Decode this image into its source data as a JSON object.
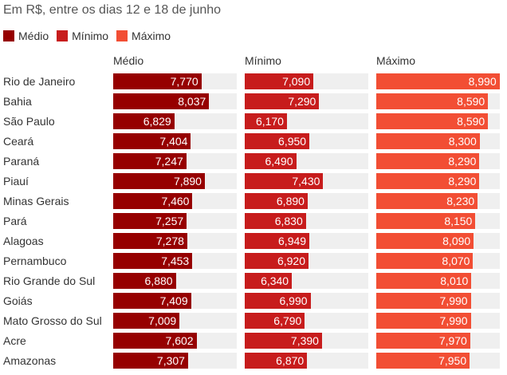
{
  "subtitle": "Em R$, entre os dias 12 e 18 de junho",
  "legend": [
    {
      "label": "Médio",
      "color": "#960000"
    },
    {
      "label": "Mínimo",
      "color": "#c71c1c"
    },
    {
      "label": "Máximo",
      "color": "#f24e34"
    }
  ],
  "chart_data": {
    "type": "bar",
    "orientation": "horizontal",
    "title": "",
    "subtitle": "Em R$, entre os dias 12 e 18 de junho",
    "categories": [
      "Rio de Janeiro",
      "Bahia",
      "São Paulo",
      "Ceará",
      "Paraná",
      "Piauí",
      "Minas Gerais",
      "Pará",
      "Alagoas",
      "Pernambuco",
      "Rio Grande do Sul",
      "Goiás",
      "Mato Grosso do Sul",
      "Acre",
      "Amazonas"
    ],
    "series": [
      {
        "name": "Médio",
        "color": "#960000",
        "values": [
          7.77,
          8.037,
          6.829,
          7.404,
          7.247,
          7.89,
          7.46,
          7.257,
          7.278,
          7.453,
          6.88,
          7.409,
          7.009,
          7.602,
          7.307
        ],
        "labels": [
          "7,770",
          "8,037",
          "6,829",
          "7,404",
          "7,247",
          "7,890",
          "7,460",
          "7,257",
          "7,278",
          "7,453",
          "6,880",
          "7,409",
          "7,009",
          "7,602",
          "7,307"
        ]
      },
      {
        "name": "Mínimo",
        "color": "#c71c1c",
        "values": [
          7.09,
          7.29,
          6.17,
          6.95,
          6.49,
          7.43,
          6.89,
          6.83,
          6.949,
          6.92,
          6.34,
          6.99,
          6.79,
          7.39,
          6.87
        ],
        "labels": [
          "7,090",
          "7,290",
          "6,170",
          "6,950",
          "6,490",
          "7,430",
          "6,890",
          "6,830",
          "6,949",
          "6,920",
          "6,340",
          "6,990",
          "6,790",
          "7,390",
          "6,870"
        ]
      },
      {
        "name": "Máximo",
        "color": "#f24e34",
        "values": [
          8.99,
          8.59,
          8.59,
          8.3,
          8.29,
          8.29,
          8.23,
          8.15,
          8.09,
          8.07,
          8.01,
          7.99,
          7.99,
          7.97,
          7.95
        ],
        "labels": [
          "8,990",
          "8,590",
          "8,590",
          "8,300",
          "8,290",
          "8,290",
          "8,230",
          "8,150",
          "8,090",
          "8,070",
          "8,010",
          "7,990",
          "7,990",
          "7,970",
          "7,950"
        ]
      }
    ],
    "xlim": [
      4.7,
      9.0
    ],
    "grid": false,
    "legend_position": "top-left"
  }
}
